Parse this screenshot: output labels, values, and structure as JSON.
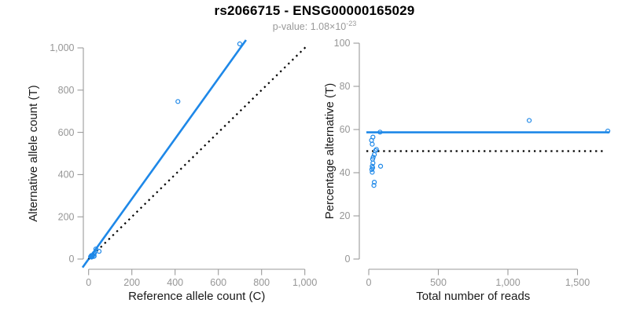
{
  "header": {
    "title": "rs2066715 - ENSG00000165029",
    "p_value_prefix": "p-value: 1.08×10",
    "p_value_exponent": "-23"
  },
  "colors": {
    "accent_blue": "#1E88E8",
    "identity_black": "#000000",
    "axis_gray": "#9a9a9a",
    "tick_label_gray": "#969696"
  },
  "chart_data": [
    {
      "id": "left",
      "type": "scatter",
      "xlabel": "Reference allele count (C)",
      "ylabel": "Alternative allele count (T)",
      "xlim": [
        0,
        1000
      ],
      "ylim": [
        0,
        1000
      ],
      "grid": false,
      "legend": "none",
      "xticks": [
        {
          "v": 0,
          "label": "0"
        },
        {
          "v": 200,
          "label": "200"
        },
        {
          "v": 400,
          "label": "400"
        },
        {
          "v": 600,
          "label": "600"
        },
        {
          "v": 800,
          "label": "800"
        },
        {
          "v": 1000,
          "label": "1,000"
        }
      ],
      "yticks": [
        {
          "v": 0,
          "label": "0"
        },
        {
          "v": 200,
          "label": "200"
        },
        {
          "v": 400,
          "label": "400"
        },
        {
          "v": 600,
          "label": "600"
        },
        {
          "v": 800,
          "label": "800"
        },
        {
          "v": 1000,
          "label": "1,000"
        }
      ],
      "point_color": "#1E88E8",
      "points": [
        [
          9.0,
          11.0
        ],
        [
          12.9,
          9.1
        ],
        [
          11.7,
          13.3
        ],
        [
          14.3,
          10.8
        ],
        [
          14.9,
          10.1
        ],
        [
          15.0,
          13.0
        ],
        [
          16.2,
          11.8
        ],
        [
          13.1,
          17.0
        ],
        [
          16.9,
          15.1
        ],
        [
          24.4,
          12.6
        ],
        [
          20.6,
          19.4
        ],
        [
          25.8,
          14.2
        ],
        [
          23.9,
          24.1
        ],
        [
          27.1,
          27.9
        ],
        [
          16.7,
          13.4
        ],
        [
          33.4,
          47.6
        ],
        [
          48.5,
          36.6
        ],
        [
          413,
          746
        ],
        [
          699,
          1019
        ]
      ],
      "lines": [
        {
          "name": "fit-line",
          "style": "solid",
          "color": "#1E88E8",
          "width": 2.6,
          "x1": -28,
          "y1": -40,
          "x2": 728,
          "y2": 1037
        },
        {
          "name": "identity-line",
          "style": "dotted",
          "color": "#000000",
          "width": 2.2,
          "x1": 0,
          "y1": 0,
          "x2": 1015,
          "y2": 1015
        }
      ]
    },
    {
      "id": "right",
      "type": "scatter",
      "xlabel": "Total number of reads",
      "ylabel": "Percentage alternative (T)",
      "xlim": [
        0,
        1500
      ],
      "ylim": [
        0,
        100
      ],
      "grid": false,
      "legend": "none",
      "xticks": [
        {
          "v": 0,
          "label": "0"
        },
        {
          "v": 500,
          "label": "500"
        },
        {
          "v": 1000,
          "label": "1,000"
        },
        {
          "v": 1500,
          "label": "1,500"
        }
      ],
      "yticks": [
        {
          "v": 0,
          "label": "0"
        },
        {
          "v": 20,
          "label": "20"
        },
        {
          "v": 40,
          "label": "40"
        },
        {
          "v": 60,
          "label": "60"
        },
        {
          "v": 80,
          "label": "80"
        },
        {
          "v": 100,
          "label": "100"
        }
      ],
      "point_color": "#1E88E8",
      "points": [
        [
          20,
          55.0
        ],
        [
          22,
          41.5
        ],
        [
          25,
          53.2
        ],
        [
          25,
          43.0
        ],
        [
          25,
          40.2
        ],
        [
          28,
          46.3
        ],
        [
          28,
          42.3
        ],
        [
          30,
          56.5
        ],
        [
          32,
          47.2
        ],
        [
          37,
          34.1
        ],
        [
          40,
          48.4
        ],
        [
          40,
          35.6
        ],
        [
          48,
          50.2
        ],
        [
          55,
          50.8
        ],
        [
          30,
          44.5
        ],
        [
          81,
          58.8
        ],
        [
          85,
          43.0
        ],
        [
          1153,
          64.2
        ],
        [
          1718,
          59.3
        ]
      ],
      "lines": [
        {
          "name": "fit-line",
          "style": "solid",
          "color": "#1E88E8",
          "width": 2.6,
          "y": 58.7,
          "x1": -17,
          "x2": 1730
        },
        {
          "name": "identity-line",
          "style": "dotted",
          "color": "#000000",
          "width": 2.2,
          "y": 50,
          "x1": -17,
          "x2": 1705
        }
      ]
    }
  ]
}
